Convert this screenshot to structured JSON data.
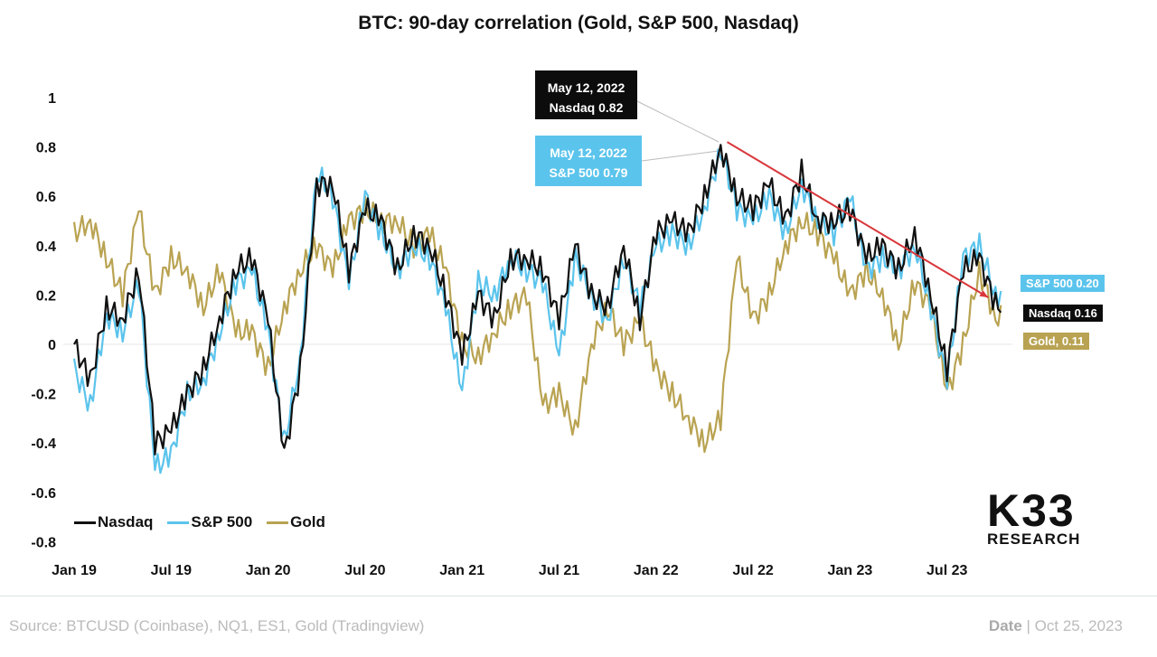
{
  "chart_data": {
    "type": "line",
    "title": "BTC: 90-day correlation (Gold, S&P 500, Nasdaq)",
    "ylim": [
      -0.8,
      1
    ],
    "yticks": [
      "1",
      "0.8",
      "0.6",
      "0.4",
      "0.2",
      "0",
      "-0.2",
      "-0.4",
      "-0.6",
      "-0.8"
    ],
    "xticks": [
      "Jan 19",
      "Jul 19",
      "Jan 20",
      "Jul 20",
      "Jan 21",
      "Jul 21",
      "Jan 22",
      "Jul 22",
      "Jan 23",
      "Jul 23"
    ],
    "x_start": "2019-01",
    "x_end": "2023-10",
    "legend_position": "bottom-left",
    "series": [
      {
        "name": "Nasdaq",
        "color": "#111111",
        "values": [
          0,
          -0.15,
          0.15,
          0.1,
          0.3,
          -0.4,
          -0.35,
          -0.2,
          -0.1,
          0.1,
          0.3,
          0.35,
          0.1,
          -0.45,
          -0.1,
          0.65,
          0.65,
          0.3,
          0.55,
          0.5,
          0.3,
          0.45,
          0.4,
          0.2,
          -0.05,
          0.2,
          0.1,
          0.35,
          0.35,
          0.3,
          0.1,
          0.4,
          0.2,
          0.15,
          0.4,
          0.1,
          0.45,
          0.5,
          0.45,
          0.6,
          0.8,
          0.6,
          0.55,
          0.65,
          0.5,
          0.7,
          0.5,
          0.5,
          0.55,
          0.35,
          0.4,
          0.3,
          0.45,
          0.2,
          -0.1,
          0.3,
          0.35,
          0.16
        ]
      },
      {
        "name": "S&P 500",
        "color": "#5bc4ec",
        "values": [
          -0.1,
          -0.25,
          0.12,
          0.05,
          0.25,
          -0.5,
          -0.45,
          -0.2,
          -0.15,
          0.05,
          0.25,
          0.3,
          0.05,
          -0.4,
          -0.05,
          0.7,
          0.6,
          0.25,
          0.6,
          0.45,
          0.3,
          0.4,
          0.35,
          0.15,
          -0.2,
          0.25,
          0.2,
          0.35,
          0.3,
          0.25,
          -0.05,
          0.35,
          0.2,
          0.1,
          0.35,
          0.15,
          0.4,
          0.45,
          0.4,
          0.55,
          0.79,
          0.55,
          0.5,
          0.6,
          0.45,
          0.65,
          0.5,
          0.45,
          0.6,
          0.3,
          0.35,
          0.3,
          0.4,
          0.15,
          -0.15,
          0.35,
          0.4,
          0.2
        ]
      },
      {
        "name": "Gold",
        "color": "#b9a352",
        "values": [
          0.45,
          0.5,
          0.35,
          0.2,
          0.55,
          0.2,
          0.35,
          0.3,
          0.15,
          0.3,
          0.05,
          0.05,
          -0.1,
          0.15,
          0.3,
          0.4,
          0.3,
          0.5,
          0.55,
          0.5,
          0.5,
          0.4,
          0.45,
          0.3,
          0,
          -0.05,
          0.05,
          0.15,
          0.2,
          -0.25,
          -0.2,
          -0.35,
          0,
          0.15,
          0,
          0.1,
          -0.1,
          -0.2,
          -0.3,
          -0.4,
          -0.3,
          0.35,
          0.1,
          0.2,
          0.4,
          0.5,
          0.45,
          0.35,
          0.2,
          0.3,
          0.2,
          0,
          0.25,
          0.15,
          -0.2,
          0,
          0.3,
          0.11
        ]
      }
    ],
    "trend_arrow": {
      "from": [
        "2022-05",
        0.82
      ],
      "to": [
        "2023-10",
        0.19
      ],
      "color": "#d9373b"
    },
    "annotations": {
      "peak_nasdaq": {
        "date": "May 12, 2022",
        "text": "Nasdaq 0.82"
      },
      "peak_sp": {
        "date": "May 12, 2022",
        "text": "S&P 500 0.79"
      },
      "end_sp": "S&P 500 0.20",
      "end_nasdaq": "Nasdaq 0.16",
      "end_gold": "Gold, 0.11"
    }
  },
  "logo": {
    "main": "K33",
    "sub": "RESEARCH"
  },
  "footer": {
    "source": "Source: BTCUSD (Coinbase), NQ1, ES1, Gold (Tradingview)",
    "date_label": "Date",
    "date_value": "| Oct 25, 2023"
  }
}
